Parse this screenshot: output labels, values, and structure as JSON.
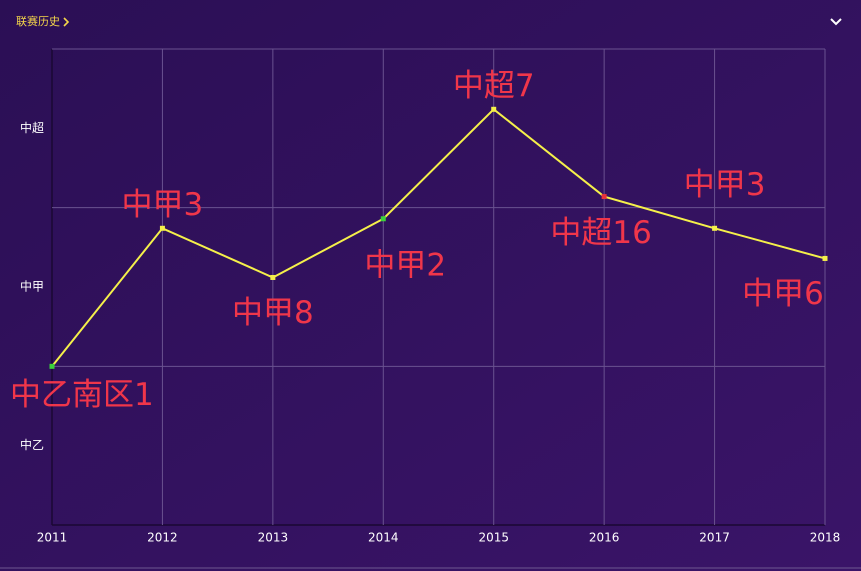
{
  "header": {
    "title": "联赛历史"
  },
  "chart_data": {
    "type": "line",
    "x": [
      2011,
      2012,
      2013,
      2014,
      2015,
      2016,
      2017,
      2018
    ],
    "series": [
      {
        "color": "#f5f04a",
        "values": [
          1,
          1.87,
          1.56,
          1.93,
          2.62,
          2.07,
          1.87,
          1.68
        ],
        "point_labels": [
          "中乙南区1",
          "中甲3",
          "中甲8",
          "中甲2",
          "中超7",
          "中超16",
          "中甲3",
          "中甲6"
        ],
        "point_colors": [
          "#3ad13a",
          "#f5f04a",
          "#f5f04a",
          "#3ad13a",
          "#f5f04a",
          "#e8323a",
          "#f5f04a",
          "#f5f04a"
        ]
      }
    ],
    "xlim": [
      2011,
      2018
    ],
    "xticks": [
      2011,
      2012,
      2013,
      2014,
      2015,
      2016,
      2017,
      2018
    ],
    "ylim": [
      0,
      3
    ],
    "yticks": [
      {
        "value": 0.5,
        "label": "中乙"
      },
      {
        "value": 1.5,
        "label": "中甲"
      },
      {
        "value": 2.5,
        "label": "中超"
      }
    ],
    "ygrid": [
      1,
      2,
      3
    ],
    "grid": true
  }
}
